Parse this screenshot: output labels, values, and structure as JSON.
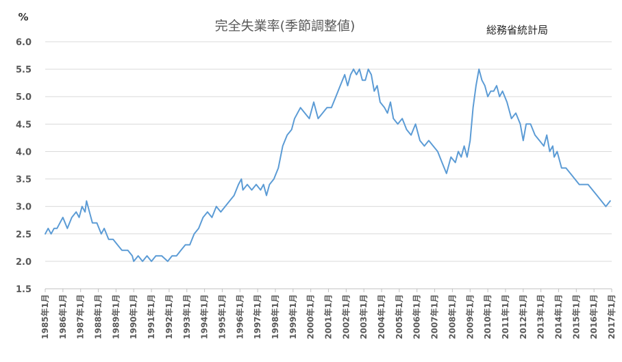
{
  "chart_data": {
    "type": "line",
    "title": "完全失業率(季節調整値)",
    "source": "総務省統計局",
    "unit": "%",
    "ylabel": "",
    "xlabel": "",
    "ylim": [
      1.5,
      6.0
    ],
    "yticks": [
      "1.5",
      "2.0",
      "2.5",
      "3.0",
      "3.5",
      "4.0",
      "4.5",
      "5.0",
      "5.5",
      "6.0"
    ],
    "grid": true,
    "legend": "none",
    "colors": {
      "line": "#5b9bd5",
      "grid": "#d9d9d9",
      "axis": "#bfbfbf",
      "text": "#595959"
    },
    "xtick_labels": [
      "1985年1月",
      "1986年1月",
      "1987年1月",
      "1988年1月",
      "1989年1月",
      "1990年1月",
      "1991年1月",
      "1992年1月",
      "1993年1月",
      "1994年1月",
      "1995年1月",
      "1996年1月",
      "1997年1月",
      "1998年1月",
      "1999年1月",
      "2000年1月",
      "2001年1月",
      "2002年1月",
      "2003年1月",
      "2004年1月",
      "2005年1月",
      "2006年1月",
      "2007年1月",
      "2008年1月",
      "2009年1月",
      "2010年1月",
      "2011年1月",
      "2012年1月",
      "2013年1月",
      "2014年1月",
      "2015年1月",
      "2016年1月",
      "2017年1月"
    ],
    "x_start": "1985-01",
    "x_end": "2017-01",
    "series": [
      {
        "name": "",
        "points": [
          [
            "1985-01",
            2.5
          ],
          [
            "1985-03",
            2.6
          ],
          [
            "1985-05",
            2.5
          ],
          [
            "1985-07",
            2.6
          ],
          [
            "1985-09",
            2.6
          ],
          [
            "1985-11",
            2.7
          ],
          [
            "1986-01",
            2.8
          ],
          [
            "1986-04",
            2.6
          ],
          [
            "1986-07",
            2.8
          ],
          [
            "1986-10",
            2.9
          ],
          [
            "1986-12",
            2.8
          ],
          [
            "1987-02",
            3.0
          ],
          [
            "1987-04",
            2.9
          ],
          [
            "1987-05",
            3.1
          ],
          [
            "1987-07",
            2.9
          ],
          [
            "1987-09",
            2.7
          ],
          [
            "1987-12",
            2.7
          ],
          [
            "1988-03",
            2.5
          ],
          [
            "1988-05",
            2.6
          ],
          [
            "1988-08",
            2.4
          ],
          [
            "1988-11",
            2.4
          ],
          [
            "1989-02",
            2.3
          ],
          [
            "1989-05",
            2.2
          ],
          [
            "1989-09",
            2.2
          ],
          [
            "1989-12",
            2.1
          ],
          [
            "1990-01",
            2.0
          ],
          [
            "1990-04",
            2.1
          ],
          [
            "1990-07",
            2.0
          ],
          [
            "1990-10",
            2.1
          ],
          [
            "1991-01",
            2.0
          ],
          [
            "1991-04",
            2.1
          ],
          [
            "1991-08",
            2.1
          ],
          [
            "1991-12",
            2.0
          ],
          [
            "1992-03",
            2.1
          ],
          [
            "1992-06",
            2.1
          ],
          [
            "1992-09",
            2.2
          ],
          [
            "1992-12",
            2.3
          ],
          [
            "1993-03",
            2.3
          ],
          [
            "1993-06",
            2.5
          ],
          [
            "1993-09",
            2.6
          ],
          [
            "1993-12",
            2.8
          ],
          [
            "1994-03",
            2.9
          ],
          [
            "1994-06",
            2.8
          ],
          [
            "1994-09",
            3.0
          ],
          [
            "1994-12",
            2.9
          ],
          [
            "1995-03",
            3.0
          ],
          [
            "1995-06",
            3.1
          ],
          [
            "1995-09",
            3.2
          ],
          [
            "1995-12",
            3.4
          ],
          [
            "1996-02",
            3.5
          ],
          [
            "1996-03",
            3.3
          ],
          [
            "1996-06",
            3.4
          ],
          [
            "1996-09",
            3.3
          ],
          [
            "1996-12",
            3.4
          ],
          [
            "1997-03",
            3.3
          ],
          [
            "1997-05",
            3.4
          ],
          [
            "1997-07",
            3.2
          ],
          [
            "1997-09",
            3.4
          ],
          [
            "1997-12",
            3.5
          ],
          [
            "1998-03",
            3.7
          ],
          [
            "1998-06",
            4.1
          ],
          [
            "1998-09",
            4.3
          ],
          [
            "1998-12",
            4.4
          ],
          [
            "1999-02",
            4.6
          ],
          [
            "1999-04",
            4.7
          ],
          [
            "1999-06",
            4.8
          ],
          [
            "1999-09",
            4.7
          ],
          [
            "1999-12",
            4.6
          ],
          [
            "2000-03",
            4.9
          ],
          [
            "2000-06",
            4.6
          ],
          [
            "2000-09",
            4.7
          ],
          [
            "2000-12",
            4.8
          ],
          [
            "2001-03",
            4.8
          ],
          [
            "2001-06",
            5.0
          ],
          [
            "2001-09",
            5.2
          ],
          [
            "2001-12",
            5.4
          ],
          [
            "2002-02",
            5.2
          ],
          [
            "2002-04",
            5.4
          ],
          [
            "2002-06",
            5.5
          ],
          [
            "2002-08",
            5.4
          ],
          [
            "2002-10",
            5.5
          ],
          [
            "2002-12",
            5.3
          ],
          [
            "2003-02",
            5.3
          ],
          [
            "2003-04",
            5.5
          ],
          [
            "2003-06",
            5.4
          ],
          [
            "2003-08",
            5.1
          ],
          [
            "2003-10",
            5.2
          ],
          [
            "2003-12",
            4.9
          ],
          [
            "2004-03",
            4.8
          ],
          [
            "2004-05",
            4.7
          ],
          [
            "2004-07",
            4.9
          ],
          [
            "2004-09",
            4.6
          ],
          [
            "2004-12",
            4.5
          ],
          [
            "2005-03",
            4.6
          ],
          [
            "2005-06",
            4.4
          ],
          [
            "2005-09",
            4.3
          ],
          [
            "2005-12",
            4.5
          ],
          [
            "2006-03",
            4.2
          ],
          [
            "2006-06",
            4.1
          ],
          [
            "2006-09",
            4.2
          ],
          [
            "2006-12",
            4.1
          ],
          [
            "2007-03",
            4.0
          ],
          [
            "2007-06",
            3.8
          ],
          [
            "2007-09",
            3.6
          ],
          [
            "2007-12",
            3.9
          ],
          [
            "2008-03",
            3.8
          ],
          [
            "2008-05",
            4.0
          ],
          [
            "2008-07",
            3.9
          ],
          [
            "2008-09",
            4.1
          ],
          [
            "2008-11",
            3.9
          ],
          [
            "2009-01",
            4.2
          ],
          [
            "2009-03",
            4.8
          ],
          [
            "2009-05",
            5.2
          ],
          [
            "2009-07",
            5.5
          ],
          [
            "2009-09",
            5.3
          ],
          [
            "2009-11",
            5.2
          ],
          [
            "2010-01",
            5.0
          ],
          [
            "2010-03",
            5.1
          ],
          [
            "2010-05",
            5.1
          ],
          [
            "2010-07",
            5.2
          ],
          [
            "2010-09",
            5.0
          ],
          [
            "2010-11",
            5.1
          ],
          [
            "2011-02",
            4.9
          ],
          [
            "2011-05",
            4.6
          ],
          [
            "2011-08",
            4.7
          ],
          [
            "2011-11",
            4.5
          ],
          [
            "2012-01",
            4.2
          ],
          [
            "2012-03",
            4.5
          ],
          [
            "2012-06",
            4.5
          ],
          [
            "2012-09",
            4.3
          ],
          [
            "2012-12",
            4.2
          ],
          [
            "2013-03",
            4.1
          ],
          [
            "2013-05",
            4.3
          ],
          [
            "2013-07",
            4.0
          ],
          [
            "2013-09",
            4.1
          ],
          [
            "2013-10",
            3.9
          ],
          [
            "2013-12",
            4.0
          ],
          [
            "2014-03",
            3.7
          ],
          [
            "2014-06",
            3.7
          ],
          [
            "2014-09",
            3.6
          ],
          [
            "2014-12",
            3.5
          ],
          [
            "2015-03",
            3.4
          ],
          [
            "2015-06",
            3.4
          ],
          [
            "2015-09",
            3.4
          ],
          [
            "2015-12",
            3.3
          ],
          [
            "2016-03",
            3.2
          ],
          [
            "2016-06",
            3.1
          ],
          [
            "2016-09",
            3.0
          ],
          [
            "2016-12",
            3.1
          ]
        ]
      }
    ]
  }
}
